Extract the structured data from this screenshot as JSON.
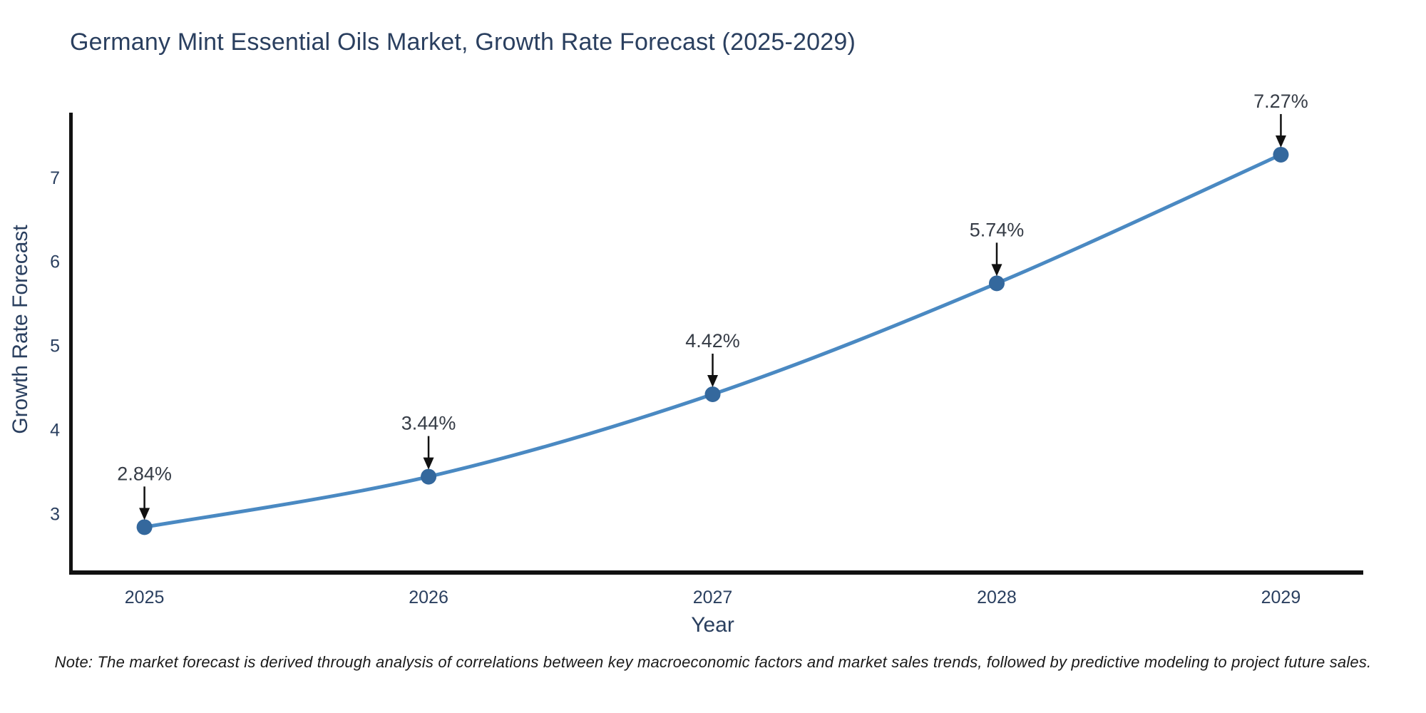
{
  "note": "Note: The market forecast is derived through analysis of correlations between key macroeconomic factors and market sales trends, followed by predictive modeling to project future sales.",
  "chart_data": {
    "type": "line",
    "title": "Germany Mint Essential Oils Market, Growth Rate Forecast (2025-2029)",
    "xlabel": "Year",
    "ylabel": "Growth Rate Forecast",
    "x": [
      2025,
      2026,
      2027,
      2028,
      2029
    ],
    "x_tick_labels": [
      "2025",
      "2026",
      "2027",
      "2028",
      "2029"
    ],
    "values": [
      2.84,
      3.44,
      4.42,
      5.74,
      7.27
    ],
    "point_labels": [
      "2.84%",
      "3.44%",
      "4.42%",
      "5.74%",
      "7.27%"
    ],
    "y_ticks": [
      3,
      4,
      5,
      6,
      7
    ],
    "xlim": [
      2024.735,
      2029.29
    ],
    "ylim": [
      2.3,
      7.77
    ],
    "grid": false,
    "legend": "none",
    "annotation_style": "black down-arrow from label to marker",
    "colors": {
      "line": "#4a89c2",
      "marker": "#34689d",
      "axis": "#111111",
      "tick_text": "#2a3f5f",
      "axis_label_text": "#2a3f5f",
      "title_text": "#2a3f5f",
      "annotation_text": "#363c46",
      "annotation_arrow": "#111111",
      "background": "#ffffff"
    }
  }
}
